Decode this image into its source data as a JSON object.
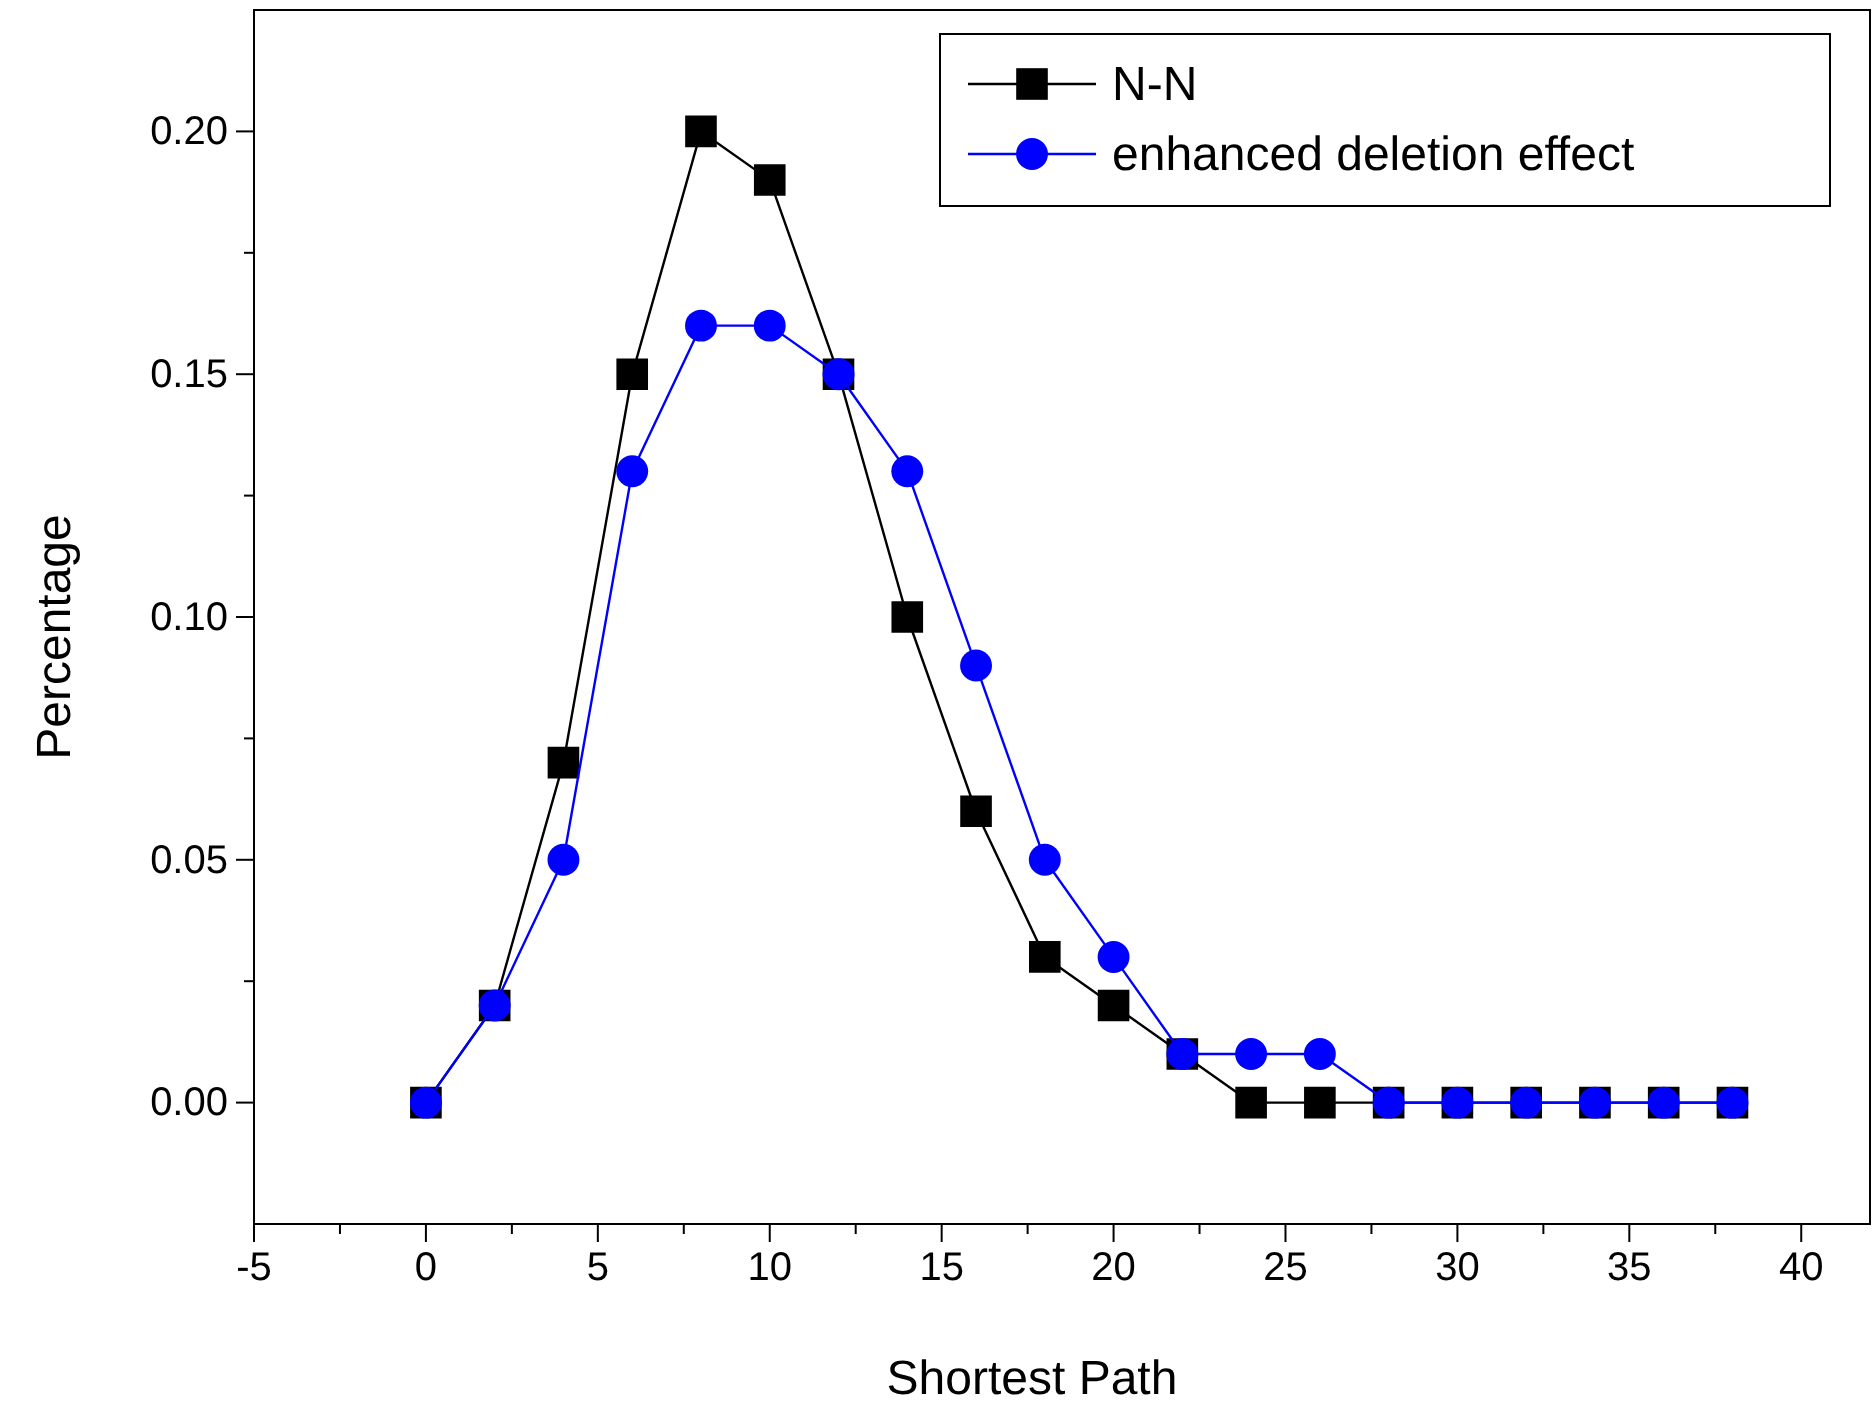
{
  "chart_data": {
    "type": "line",
    "xlabel": "Shortest Path",
    "ylabel": "Percentage",
    "x": [
      0,
      2,
      4,
      6,
      8,
      10,
      12,
      14,
      16,
      18,
      20,
      22,
      24,
      26,
      28,
      30,
      32,
      34,
      36,
      38
    ],
    "series": [
      {
        "name": "N-N",
        "color": "#000000",
        "marker": "square",
        "values": [
          0,
          0.02,
          0.07,
          0.15,
          0.2,
          0.19,
          0.15,
          0.1,
          0.06,
          0.03,
          0.02,
          0.01,
          0,
          0,
          0,
          0,
          0,
          0,
          0,
          0
        ]
      },
      {
        "name": "enhanced deletion effect",
        "color": "#0000ff",
        "marker": "circle",
        "values": [
          0,
          0.02,
          0.05,
          0.13,
          0.16,
          0.16,
          0.15,
          0.13,
          0.09,
          0.05,
          0.03,
          0.01,
          0.01,
          0.01,
          0,
          0,
          0,
          0,
          0,
          0
        ]
      }
    ],
    "xlim": [
      -5,
      42
    ],
    "ylim": [
      -0.025,
      0.225
    ],
    "xticks": [
      -5,
      {
        "value": -2.5,
        "label": null
      },
      0,
      {
        "value": 2.5,
        "label": null
      },
      5,
      {
        "value": 7.5,
        "label": null
      },
      10,
      {
        "value": 12.5,
        "label": null
      },
      15,
      {
        "value": 17.5,
        "label": null
      },
      20,
      {
        "value": 22.5,
        "label": null
      },
      25,
      {
        "value": 27.5,
        "label": null
      },
      30,
      {
        "value": 32.5,
        "label": null
      },
      35,
      {
        "value": 37.5,
        "label": null
      },
      40
    ],
    "yticks": [
      {
        "value": 0,
        "label": "0.00"
      },
      {
        "value": 0.025,
        "label": null
      },
      {
        "value": 0.05,
        "label": "0.05"
      },
      {
        "value": 0.075,
        "label": null
      },
      {
        "value": 0.1,
        "label": "0.10"
      },
      {
        "value": 0.125,
        "label": null
      },
      {
        "value": 0.15,
        "label": "0.15"
      },
      {
        "value": 0.175,
        "label": null
      },
      {
        "value": 0.2,
        "label": "0.20"
      }
    ],
    "legend": "top right",
    "grid": false,
    "line_style": "solid"
  }
}
